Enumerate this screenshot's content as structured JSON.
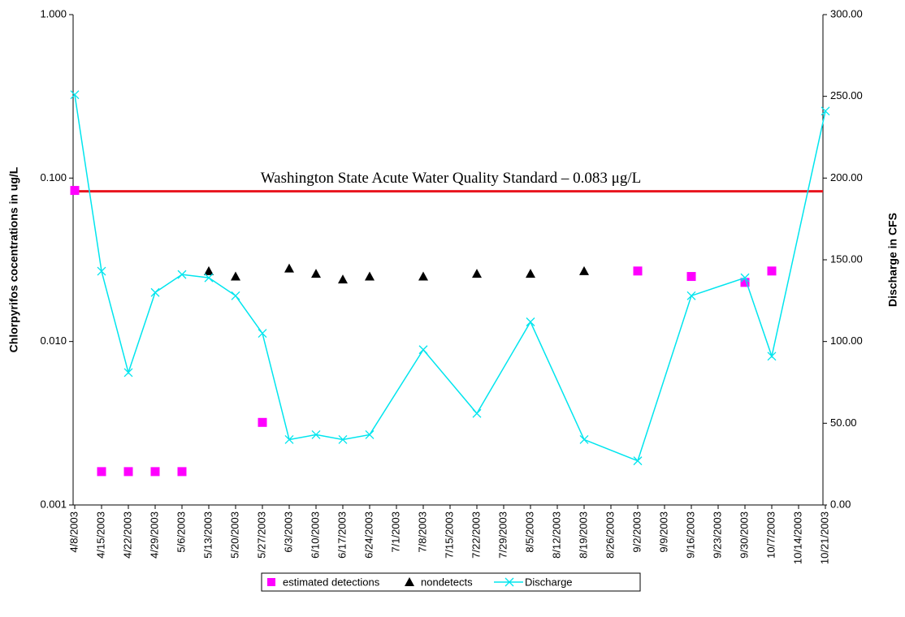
{
  "chart_data": {
    "type": "line",
    "y_axis_label": "Chlorpyrifos cocentrations in ug/L",
    "y2_axis_label": "Discharge in CFS",
    "categories": [
      "4/8/2003",
      "4/15/2003",
      "4/22/2003",
      "4/29/2003",
      "5/6/2003",
      "5/13/2003",
      "5/20/2003",
      "5/27/2003",
      "6/3/2003",
      "6/10/2003",
      "6/17/2003",
      "6/24/2003",
      "7/1/2003",
      "7/8/2003",
      "7/15/2003",
      "7/22/2003",
      "7/29/2003",
      "8/5/2003",
      "8/12/2003",
      "8/19/2003",
      "8/26/2003",
      "9/2/2003",
      "9/9/2003",
      "9/16/2003",
      "9/23/2003",
      "9/30/2003",
      "10/7/2003",
      "10/14/2003",
      "10/21/2003"
    ],
    "ylog": true,
    "ylim": [
      0.001,
      1
    ],
    "yticks": [
      {
        "value": 0.001,
        "label": "0.001"
      },
      {
        "value": 0.01,
        "label": "0.010"
      },
      {
        "value": 0.1,
        "label": "0.100"
      },
      {
        "value": 1,
        "label": "1.000"
      }
    ],
    "y2lim": [
      0,
      300
    ],
    "y2ticks": [
      {
        "value": 0,
        "label": "0.00"
      },
      {
        "value": 50,
        "label": "50.00"
      },
      {
        "value": 100,
        "label": "100.00"
      },
      {
        "value": 150,
        "label": "150.00"
      },
      {
        "value": 200,
        "label": "200.00"
      },
      {
        "value": 250,
        "label": "250.00"
      },
      {
        "value": 300,
        "label": "300.00"
      }
    ],
    "grid": false,
    "legend": "bottom",
    "reference_line": {
      "value": 0.083,
      "label": "Washington State Acute Water Quality Standard – 0.083 μg/L",
      "color": "#e8141e"
    },
    "series": [
      {
        "name": "estimated detections",
        "color": "#ff00ff",
        "marker": "square",
        "connect": false,
        "x": [
          "4/8/2003",
          "4/15/2003",
          "4/22/2003",
          "4/29/2003",
          "5/6/2003",
          "5/27/2003",
          "9/2/2003",
          "9/16/2003",
          "9/30/2003",
          "10/7/2003"
        ],
        "values": [
          0.084,
          0.0016,
          0.0016,
          0.0016,
          0.0016,
          0.0032,
          0.027,
          0.025,
          0.023,
          0.027
        ]
      },
      {
        "name": "nondetects",
        "color": "#000000",
        "marker": "triangle",
        "connect": false,
        "x": [
          "5/13/2003",
          "5/20/2003",
          "6/3/2003",
          "6/10/2003",
          "6/17/2003",
          "6/24/2003",
          "7/8/2003",
          "7/22/2003",
          "8/5/2003",
          "8/19/2003"
        ],
        "values": [
          0.027,
          0.025,
          0.028,
          0.026,
          0.024,
          0.025,
          0.025,
          0.026,
          0.026,
          0.027
        ]
      },
      {
        "name": "Discharge",
        "color": "#00e5ee",
        "marker": "x",
        "connect": true,
        "axis": "y2",
        "x": [
          "4/8/2003",
          "4/15/2003",
          "4/22/2003",
          "4/29/2003",
          "5/6/2003",
          "5/13/2003",
          "5/20/2003",
          "5/27/2003",
          "6/3/2003",
          "6/10/2003",
          "6/17/2003",
          "6/24/2003",
          "7/8/2003",
          "7/22/2003",
          "8/5/2003",
          "8/19/2003",
          "9/2/2003",
          "9/16/2003",
          "9/30/2003",
          "10/7/2003",
          "10/21/2003"
        ],
        "values": [
          251,
          143,
          81,
          130,
          141,
          139,
          128,
          105,
          40,
          43,
          40,
          43,
          95,
          56,
          112,
          40,
          27,
          128,
          139,
          91,
          241
        ]
      }
    ]
  }
}
